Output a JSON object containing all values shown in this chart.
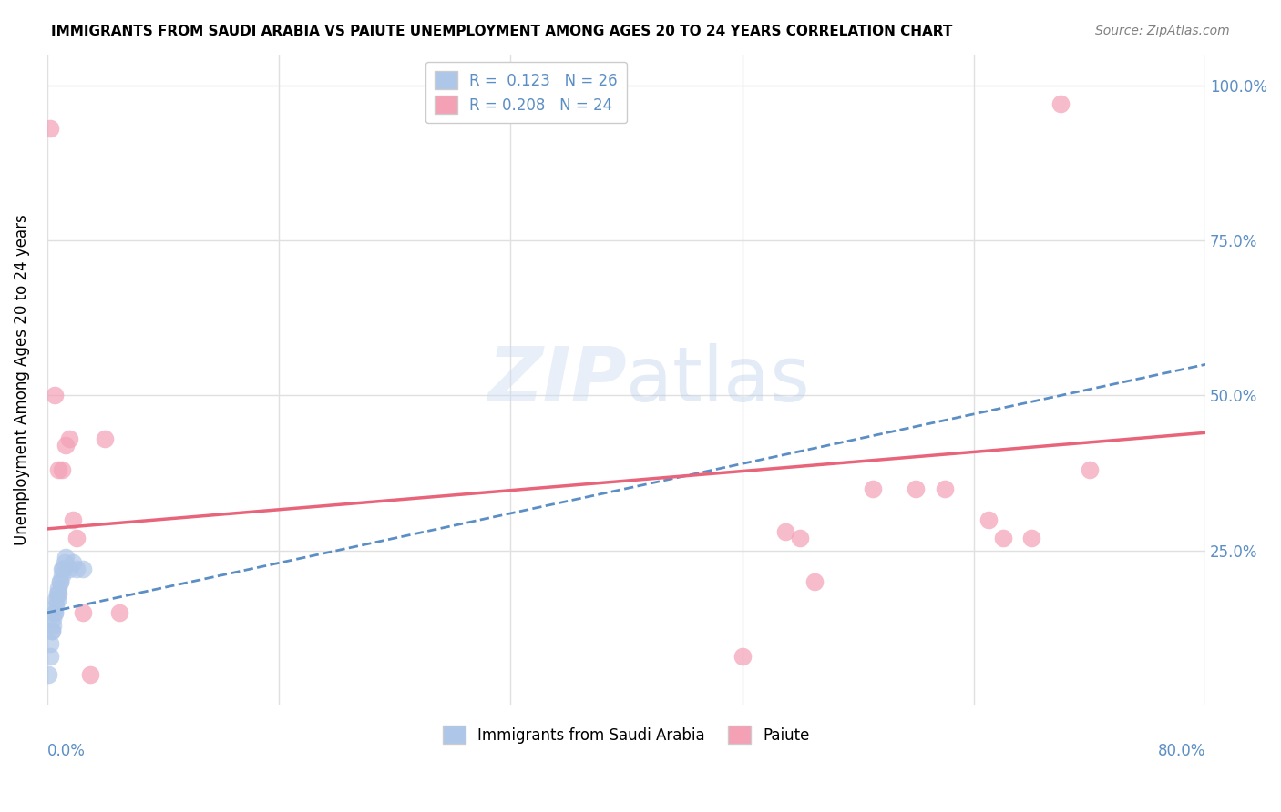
{
  "title": "IMMIGRANTS FROM SAUDI ARABIA VS PAIUTE UNEMPLOYMENT AMONG AGES 20 TO 24 YEARS CORRELATION CHART",
  "source": "Source: ZipAtlas.com",
  "ylabel": "Unemployment Among Ages 20 to 24 years",
  "ytick_values": [
    0.0,
    0.25,
    0.5,
    0.75,
    1.0
  ],
  "xlim": [
    0.0,
    0.8
  ],
  "ylim": [
    0.0,
    1.05
  ],
  "blue_color": "#aec6e8",
  "pink_color": "#f4a0b5",
  "blue_line_color": "#5b8ec4",
  "pink_line_color": "#e8647a",
  "legend_R_blue": "0.123",
  "legend_N_blue": "26",
  "legend_R_pink": "0.208",
  "legend_N_pink": "24",
  "legend_label_blue": "Immigrants from Saudi Arabia",
  "legend_label_pink": "Paiute",
  "watermark_zip": "ZIP",
  "watermark_atlas": "atlas",
  "blue_scatter_x": [
    0.001,
    0.002,
    0.002,
    0.003,
    0.003,
    0.004,
    0.004,
    0.005,
    0.005,
    0.006,
    0.006,
    0.007,
    0.007,
    0.008,
    0.008,
    0.009,
    0.009,
    0.01,
    0.01,
    0.011,
    0.012,
    0.013,
    0.015,
    0.018,
    0.02,
    0.025
  ],
  "blue_scatter_y": [
    0.05,
    0.08,
    0.1,
    0.12,
    0.12,
    0.13,
    0.14,
    0.15,
    0.15,
    0.16,
    0.17,
    0.17,
    0.18,
    0.18,
    0.19,
    0.2,
    0.2,
    0.21,
    0.22,
    0.22,
    0.23,
    0.24,
    0.22,
    0.23,
    0.22,
    0.22
  ],
  "pink_scatter_x": [
    0.002,
    0.005,
    0.008,
    0.01,
    0.013,
    0.015,
    0.018,
    0.02,
    0.025,
    0.03,
    0.04,
    0.05,
    0.48,
    0.51,
    0.52,
    0.53,
    0.57,
    0.6,
    0.62,
    0.65,
    0.66,
    0.68,
    0.7,
    0.72
  ],
  "pink_scatter_y": [
    0.93,
    0.5,
    0.38,
    0.38,
    0.42,
    0.43,
    0.3,
    0.27,
    0.15,
    0.05,
    0.43,
    0.15,
    0.08,
    0.28,
    0.27,
    0.2,
    0.35,
    0.35,
    0.35,
    0.3,
    0.27,
    0.27,
    0.97,
    0.38
  ],
  "blue_line_x": [
    0.0,
    0.8
  ],
  "blue_line_y": [
    0.15,
    0.55
  ],
  "pink_line_x": [
    0.0,
    0.8
  ],
  "pink_line_y": [
    0.285,
    0.44
  ],
  "grid_color": "#e0e0e0",
  "background_color": "#ffffff"
}
